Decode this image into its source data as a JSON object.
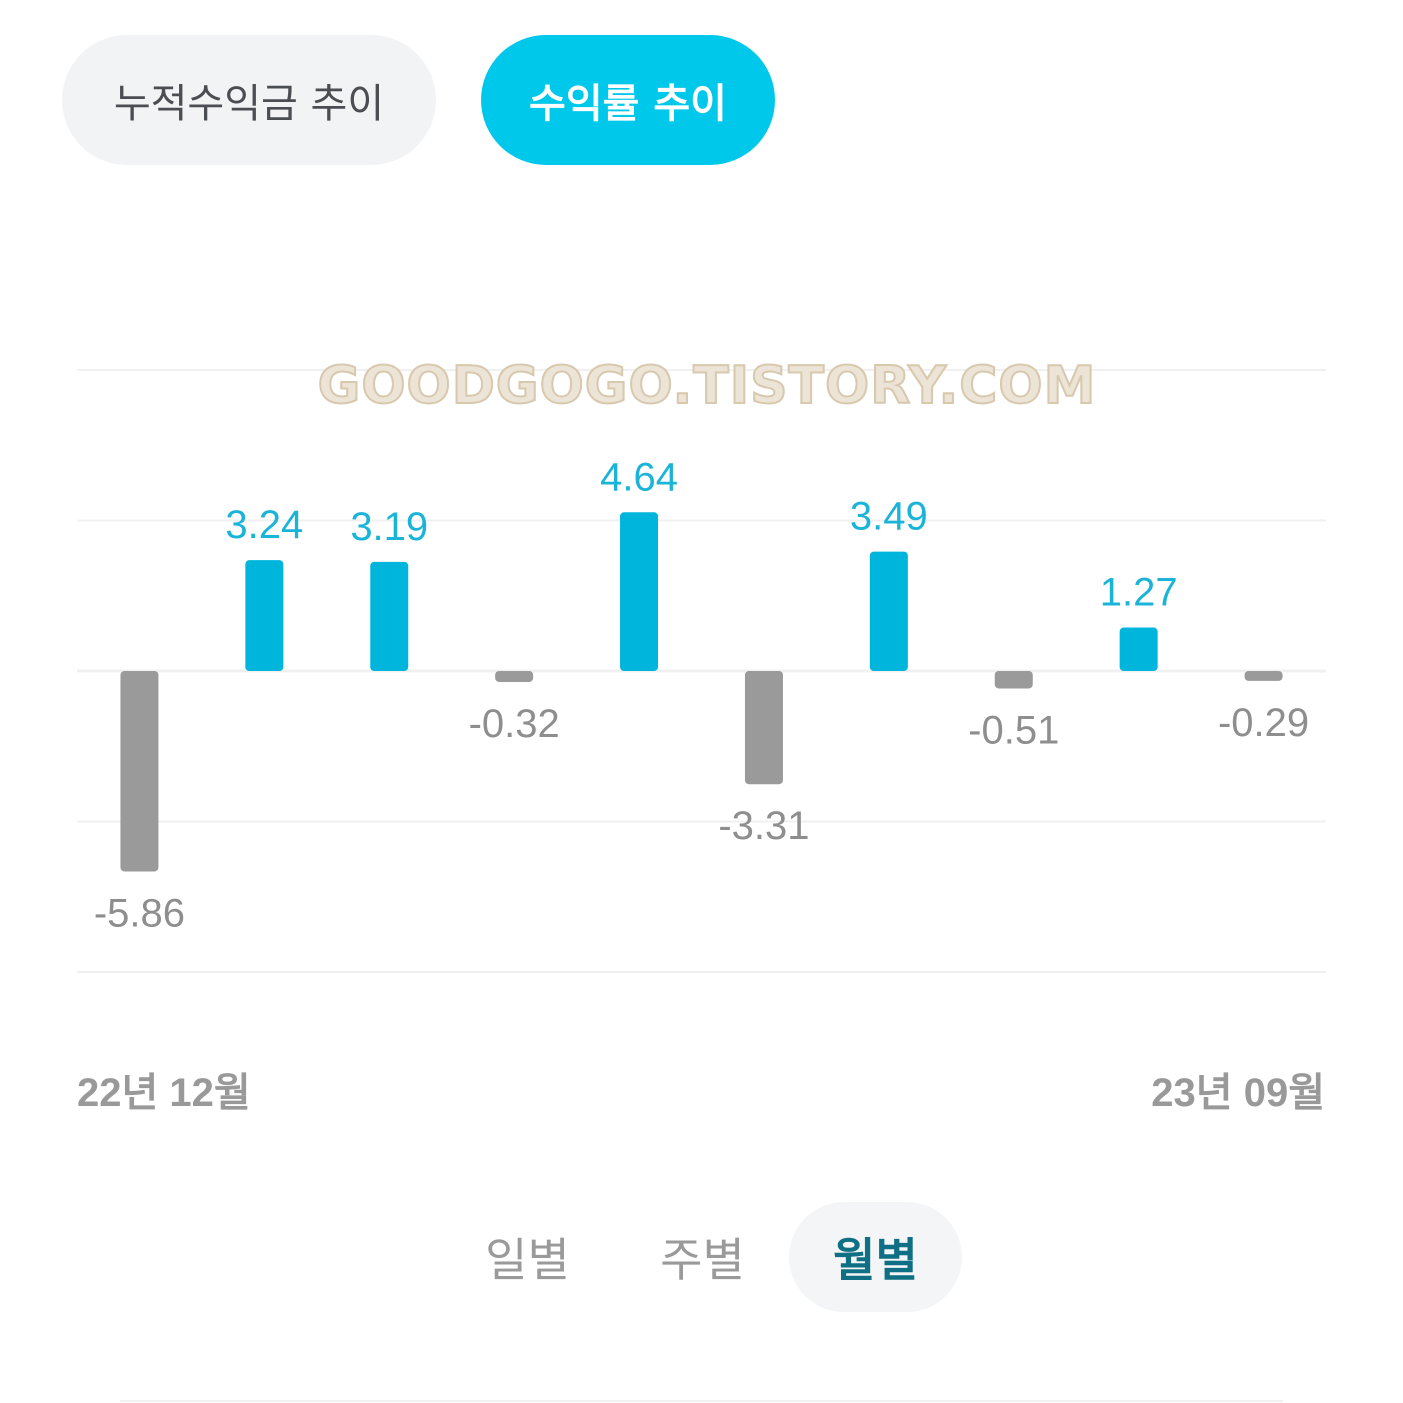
{
  "tabs": {
    "cumulative_label": "누적수익금 추이",
    "rate_label": "수익률 추이",
    "active": "rate"
  },
  "colors": {
    "positive": "#00b5dc",
    "negative": "#9a9a9a",
    "active_tab_bg": "#00c8ea",
    "watermark": "#e8dccb"
  },
  "watermark": "GOODGOGO.TISTORY.COM",
  "chart_data": {
    "type": "bar",
    "categories": [
      "22년 12월",
      "",
      "",
      "",
      "",
      "",
      "",
      "",
      "",
      "23년 09월"
    ],
    "values": [
      -5.86,
      3.24,
      3.19,
      -0.32,
      4.64,
      -3.31,
      3.49,
      -0.51,
      1.27,
      -0.29
    ],
    "ylim": [
      -8.8,
      8.8
    ],
    "grid": true,
    "title": "",
    "xlabel": "",
    "ylabel": ""
  },
  "x_axis": {
    "start_label": "22년 12월",
    "end_label": "23년 09월"
  },
  "period": {
    "daily": "일별",
    "weekly": "주별",
    "monthly": "월별",
    "active": "monthly"
  }
}
